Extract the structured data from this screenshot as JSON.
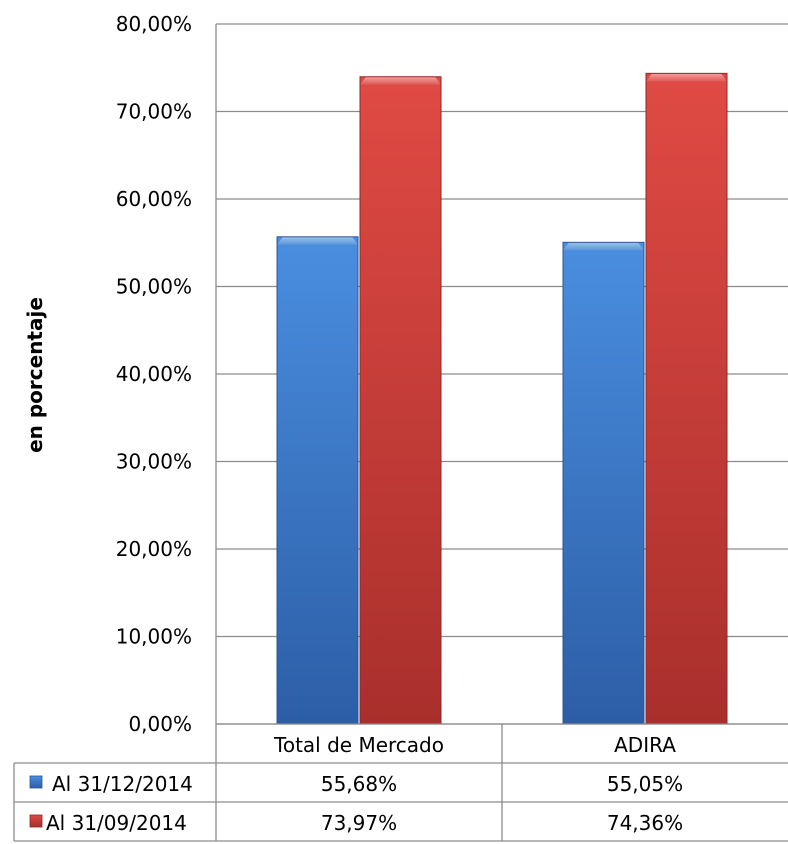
{
  "chart_data": {
    "type": "bar",
    "title": "",
    "ylabel": "en porcentaje",
    "xlabel": "",
    "categories": [
      "Total de Mercado",
      "ADIRA"
    ],
    "ylim": [
      0,
      80
    ],
    "yticks": [
      0,
      10,
      20,
      30,
      40,
      50,
      60,
      70,
      80
    ],
    "ytick_labels": [
      "0,00%",
      "10,00%",
      "20,00%",
      "30,00%",
      "40,00%",
      "50,00%",
      "60,00%",
      "70,00%",
      "80,00%"
    ],
    "grid": true,
    "legend": "data-table-left",
    "series": [
      {
        "name": "Al 31/12/2014",
        "values": [
          55.68,
          55.05
        ],
        "labels": [
          "55,68%",
          "55,05%"
        ],
        "color": "#3f7fd0"
      },
      {
        "name": "Al 31/09/2014",
        "values": [
          73.97,
          74.36
        ],
        "labels": [
          "73,97%",
          "74,36%"
        ],
        "color": "#d0403b"
      }
    ]
  }
}
